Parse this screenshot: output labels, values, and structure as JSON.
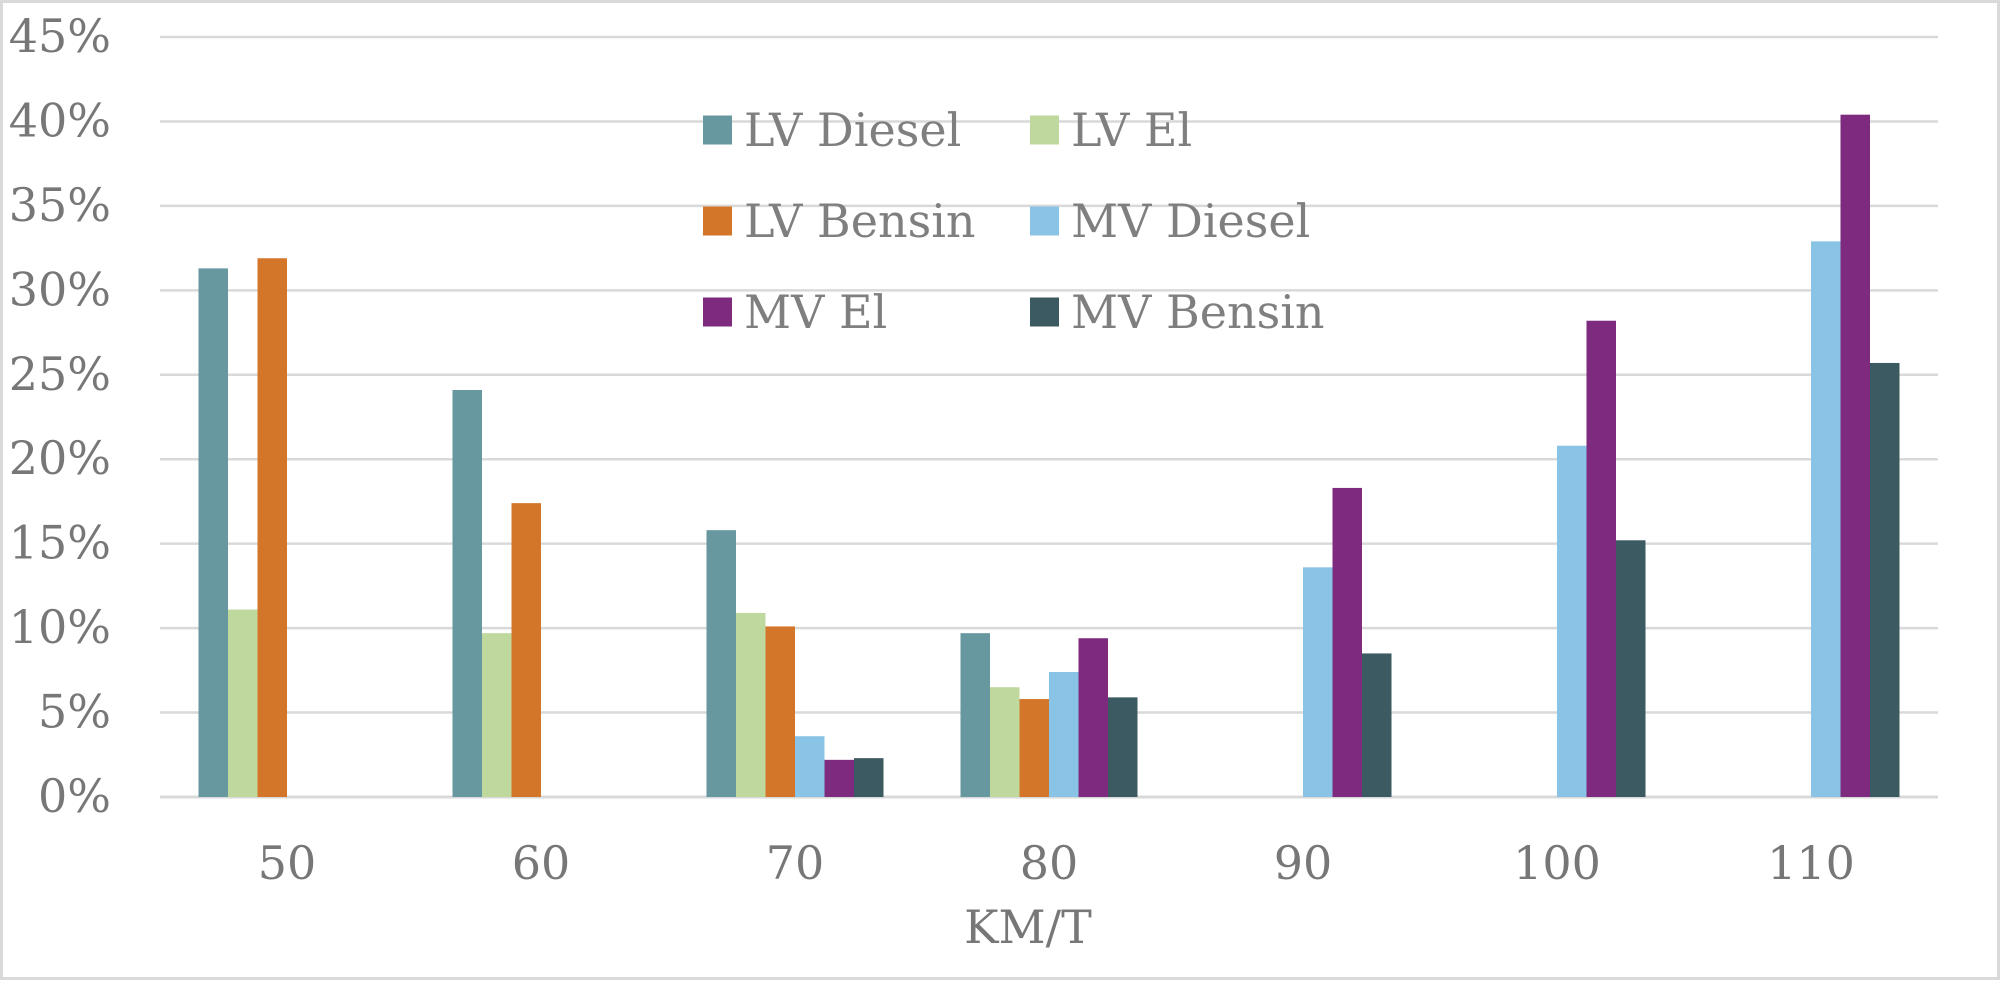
{
  "chart_data": {
    "type": "bar",
    "title": "",
    "xlabel": "KM/T",
    "ylabel": "",
    "categories": [
      "50",
      "60",
      "70",
      "80",
      "90",
      "100",
      "110"
    ],
    "yticks": [
      "0%",
      "5%",
      "10%",
      "15%",
      "20%",
      "25%",
      "30%",
      "35%",
      "40%",
      "45%"
    ],
    "ylim": [
      0,
      45
    ],
    "grid": true,
    "legend_position": "top-center",
    "series": [
      {
        "name": "LV Diesel",
        "color": "#67979f",
        "values": [
          31.3,
          24.1,
          15.8,
          9.7,
          0,
          0,
          0
        ]
      },
      {
        "name": "LV El",
        "color": "#bfd89d",
        "values": [
          11.1,
          9.7,
          10.9,
          6.5,
          0,
          0,
          0
        ]
      },
      {
        "name": "LV Bensin",
        "color": "#d4762a",
        "values": [
          31.9,
          17.4,
          10.1,
          5.8,
          0,
          0,
          0
        ]
      },
      {
        "name": "MV Diesel",
        "color": "#89c4e6",
        "values": [
          0,
          0,
          3.6,
          7.4,
          13.6,
          20.8,
          32.9
        ]
      },
      {
        "name": "MV El",
        "color": "#7e2a7e",
        "values": [
          0,
          0,
          2.2,
          9.4,
          18.3,
          28.2,
          40.4
        ]
      },
      {
        "name": "MV Bensin",
        "color": "#3c5a62",
        "values": [
          0,
          0,
          2.3,
          5.9,
          8.5,
          15.2,
          25.7
        ]
      }
    ]
  }
}
